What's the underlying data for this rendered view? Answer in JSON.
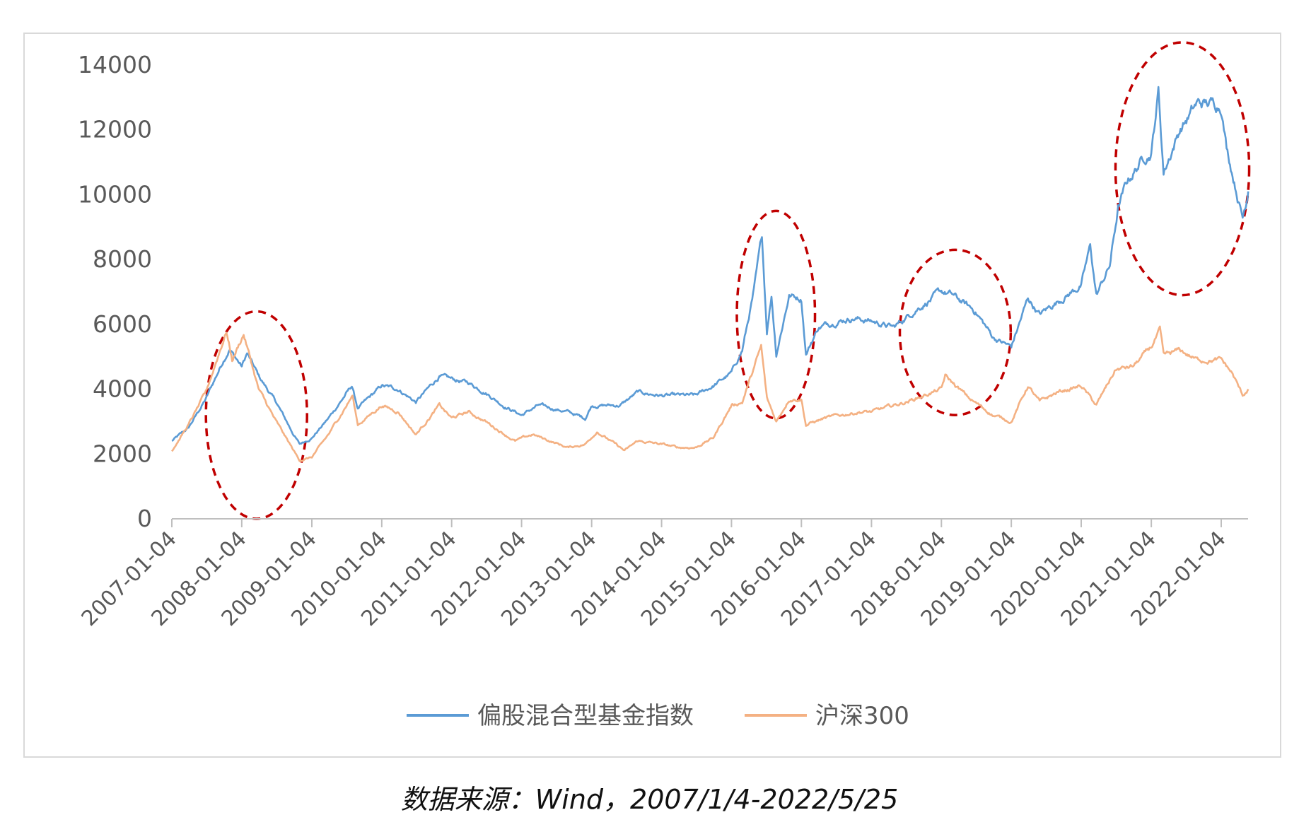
{
  "chart_data": {
    "type": "line",
    "title": "",
    "xlabel": "",
    "ylabel": "",
    "ylim": [
      0,
      14000
    ],
    "yticks": [
      0,
      2000,
      4000,
      6000,
      8000,
      10000,
      12000,
      14000
    ],
    "x_tick_labels": [
      "2007-01-04",
      "2008-01-04",
      "2009-01-04",
      "2010-01-04",
      "2011-01-04",
      "2012-01-04",
      "2013-01-04",
      "2014-01-04",
      "2015-01-04",
      "2016-01-04",
      "2017-01-04",
      "2018-01-04",
      "2019-01-04",
      "2020-01-04",
      "2021-01-04",
      "2022-01-04"
    ],
    "x_range": [
      "2007-01-04",
      "2022-05-25"
    ],
    "legend_position": "bottom",
    "grid": false,
    "series": [
      {
        "name": "偏股混合型基金指数",
        "color": "#5b9bd5",
        "points": [
          [
            "2007-01-04",
            2400
          ],
          [
            "2007-04-01",
            2800
          ],
          [
            "2007-07-01",
            3700
          ],
          [
            "2007-10-01",
            4900
          ],
          [
            "2007-11-01",
            5250
          ],
          [
            "2008-01-04",
            4700
          ],
          [
            "2008-02-01",
            5100
          ],
          [
            "2008-04-01",
            4400
          ],
          [
            "2008-07-01",
            3600
          ],
          [
            "2008-10-01",
            2600
          ],
          [
            "2008-11-01",
            2300
          ],
          [
            "2009-01-04",
            2500
          ],
          [
            "2009-04-01",
            3100
          ],
          [
            "2009-08-01",
            4100
          ],
          [
            "2009-09-01",
            3400
          ],
          [
            "2010-01-04",
            4100
          ],
          [
            "2010-04-01",
            4000
          ],
          [
            "2010-07-01",
            3600
          ],
          [
            "2010-11-01",
            4400
          ],
          [
            "2011-01-04",
            4300
          ],
          [
            "2011-04-01",
            4200
          ],
          [
            "2011-07-01",
            3900
          ],
          [
            "2011-10-01",
            3500
          ],
          [
            "2012-01-04",
            3200
          ],
          [
            "2012-04-01",
            3500
          ],
          [
            "2012-09-01",
            3300
          ],
          [
            "2012-12-01",
            3100
          ],
          [
            "2013-01-04",
            3500
          ],
          [
            "2013-06-01",
            3500
          ],
          [
            "2013-09-01",
            3900
          ],
          [
            "2014-01-04",
            3800
          ],
          [
            "2014-04-01",
            3800
          ],
          [
            "2014-07-01",
            3800
          ],
          [
            "2014-10-01",
            4100
          ],
          [
            "2015-01-04",
            4500
          ],
          [
            "2015-03-01",
            5200
          ],
          [
            "2015-05-01",
            7000
          ],
          [
            "2015-06-12",
            8700
          ],
          [
            "2015-07-08",
            5800
          ],
          [
            "2015-08-01",
            6900
          ],
          [
            "2015-08-26",
            5100
          ],
          [
            "2015-11-01",
            6900
          ],
          [
            "2016-01-04",
            6800
          ],
          [
            "2016-01-28",
            5100
          ],
          [
            "2016-04-01",
            5900
          ],
          [
            "2016-07-01",
            6100
          ],
          [
            "2016-10-01",
            6200
          ],
          [
            "2017-01-04",
            6100
          ],
          [
            "2017-05-01",
            5900
          ],
          [
            "2017-09-01",
            6500
          ],
          [
            "2018-01-04",
            7000
          ],
          [
            "2018-03-01",
            6900
          ],
          [
            "2018-07-01",
            6400
          ],
          [
            "2018-10-01",
            5600
          ],
          [
            "2019-01-04",
            5300
          ],
          [
            "2019-04-01",
            6800
          ],
          [
            "2019-06-01",
            6300
          ],
          [
            "2019-09-01",
            6700
          ],
          [
            "2020-01-04",
            7200
          ],
          [
            "2020-02-20",
            8400
          ],
          [
            "2020-03-23",
            6900
          ],
          [
            "2020-06-01",
            7800
          ],
          [
            "2020-07-15",
            9600
          ],
          [
            "2020-09-01",
            10400
          ],
          [
            "2020-12-01",
            11200
          ],
          [
            "2021-01-04",
            11300
          ],
          [
            "2021-02-10",
            13200
          ],
          [
            "2021-03-09",
            10700
          ],
          [
            "2021-06-01",
            12000
          ],
          [
            "2021-09-01",
            12800
          ],
          [
            "2022-01-04",
            12800
          ],
          [
            "2022-02-01",
            11500
          ],
          [
            "2022-04-26",
            9300
          ],
          [
            "2022-05-25",
            10100
          ]
        ]
      },
      {
        "name": "沪深300",
        "color": "#f4b183",
        "points": [
          [
            "2007-01-04",
            2100
          ],
          [
            "2007-04-01",
            2900
          ],
          [
            "2007-07-01",
            3900
          ],
          [
            "2007-10-16",
            5800
          ],
          [
            "2007-11-15",
            4900
          ],
          [
            "2008-01-14",
            5700
          ],
          [
            "2008-04-01",
            4000
          ],
          [
            "2008-07-01",
            3000
          ],
          [
            "2008-11-01",
            1800
          ],
          [
            "2009-01-04",
            1900
          ],
          [
            "2009-04-01",
            2600
          ],
          [
            "2009-08-04",
            3800
          ],
          [
            "2009-09-01",
            2900
          ],
          [
            "2010-01-04",
            3500
          ],
          [
            "2010-04-01",
            3300
          ],
          [
            "2010-07-01",
            2600
          ],
          [
            "2010-11-01",
            3500
          ],
          [
            "2011-01-04",
            3100
          ],
          [
            "2011-04-01",
            3300
          ],
          [
            "2011-07-01",
            3000
          ],
          [
            "2011-12-01",
            2400
          ],
          [
            "2012-03-01",
            2600
          ],
          [
            "2012-09-01",
            2200
          ],
          [
            "2012-12-01",
            2300
          ],
          [
            "2013-02-01",
            2700
          ],
          [
            "2013-06-25",
            2100
          ],
          [
            "2013-09-01",
            2400
          ],
          [
            "2014-01-04",
            2300
          ],
          [
            "2014-04-01",
            2200
          ],
          [
            "2014-07-01",
            2200
          ],
          [
            "2014-10-01",
            2500
          ],
          [
            "2015-01-04",
            3500
          ],
          [
            "2015-03-01",
            3600
          ],
          [
            "2015-06-08",
            5300
          ],
          [
            "2015-07-08",
            3700
          ],
          [
            "2015-08-26",
            3000
          ],
          [
            "2015-11-01",
            3700
          ],
          [
            "2016-01-04",
            3700
          ],
          [
            "2016-01-28",
            2900
          ],
          [
            "2016-05-01",
            3100
          ],
          [
            "2016-11-01",
            3300
          ],
          [
            "2017-01-04",
            3300
          ],
          [
            "2017-07-01",
            3600
          ],
          [
            "2018-01-04",
            4000
          ],
          [
            "2018-01-24",
            4400
          ],
          [
            "2018-06-01",
            3700
          ],
          [
            "2018-10-01",
            3200
          ],
          [
            "2019-01-04",
            3000
          ],
          [
            "2019-04-01",
            4100
          ],
          [
            "2019-06-01",
            3600
          ],
          [
            "2019-09-01",
            3900
          ],
          [
            "2020-01-04",
            4100
          ],
          [
            "2020-03-23",
            3500
          ],
          [
            "2020-07-01",
            4600
          ],
          [
            "2020-10-01",
            4700
          ],
          [
            "2021-01-04",
            5300
          ],
          [
            "2021-02-18",
            5800
          ],
          [
            "2021-03-09",
            5000
          ],
          [
            "2021-06-01",
            5200
          ],
          [
            "2021-09-01",
            4900
          ],
          [
            "2022-01-04",
            4900
          ],
          [
            "2022-03-01",
            4500
          ],
          [
            "2022-04-26",
            3800
          ],
          [
            "2022-05-25",
            4000
          ]
        ]
      }
    ],
    "annotations": [
      {
        "shape": "dashed-ellipse",
        "color": "#c00000",
        "from": "2007-07-01",
        "to": "2008-12-10",
        "ymin": 0,
        "ymax": 6400
      },
      {
        "shape": "dashed-ellipse",
        "color": "#c00000",
        "from": "2015-02-01",
        "to": "2016-03-15",
        "ymin": 3100,
        "ymax": 9500
      },
      {
        "shape": "dashed-ellipse",
        "color": "#c00000",
        "from": "2017-06-01",
        "to": "2019-01-01",
        "ymin": 3200,
        "ymax": 8300
      },
      {
        "shape": "dashed-ellipse",
        "color": "#c00000",
        "from": "2020-07-01",
        "to": "2022-05-30",
        "ymin": 6900,
        "ymax": 14700
      }
    ]
  },
  "source_note": "数据来源：Wind，2007/1/4-2022/5/25"
}
